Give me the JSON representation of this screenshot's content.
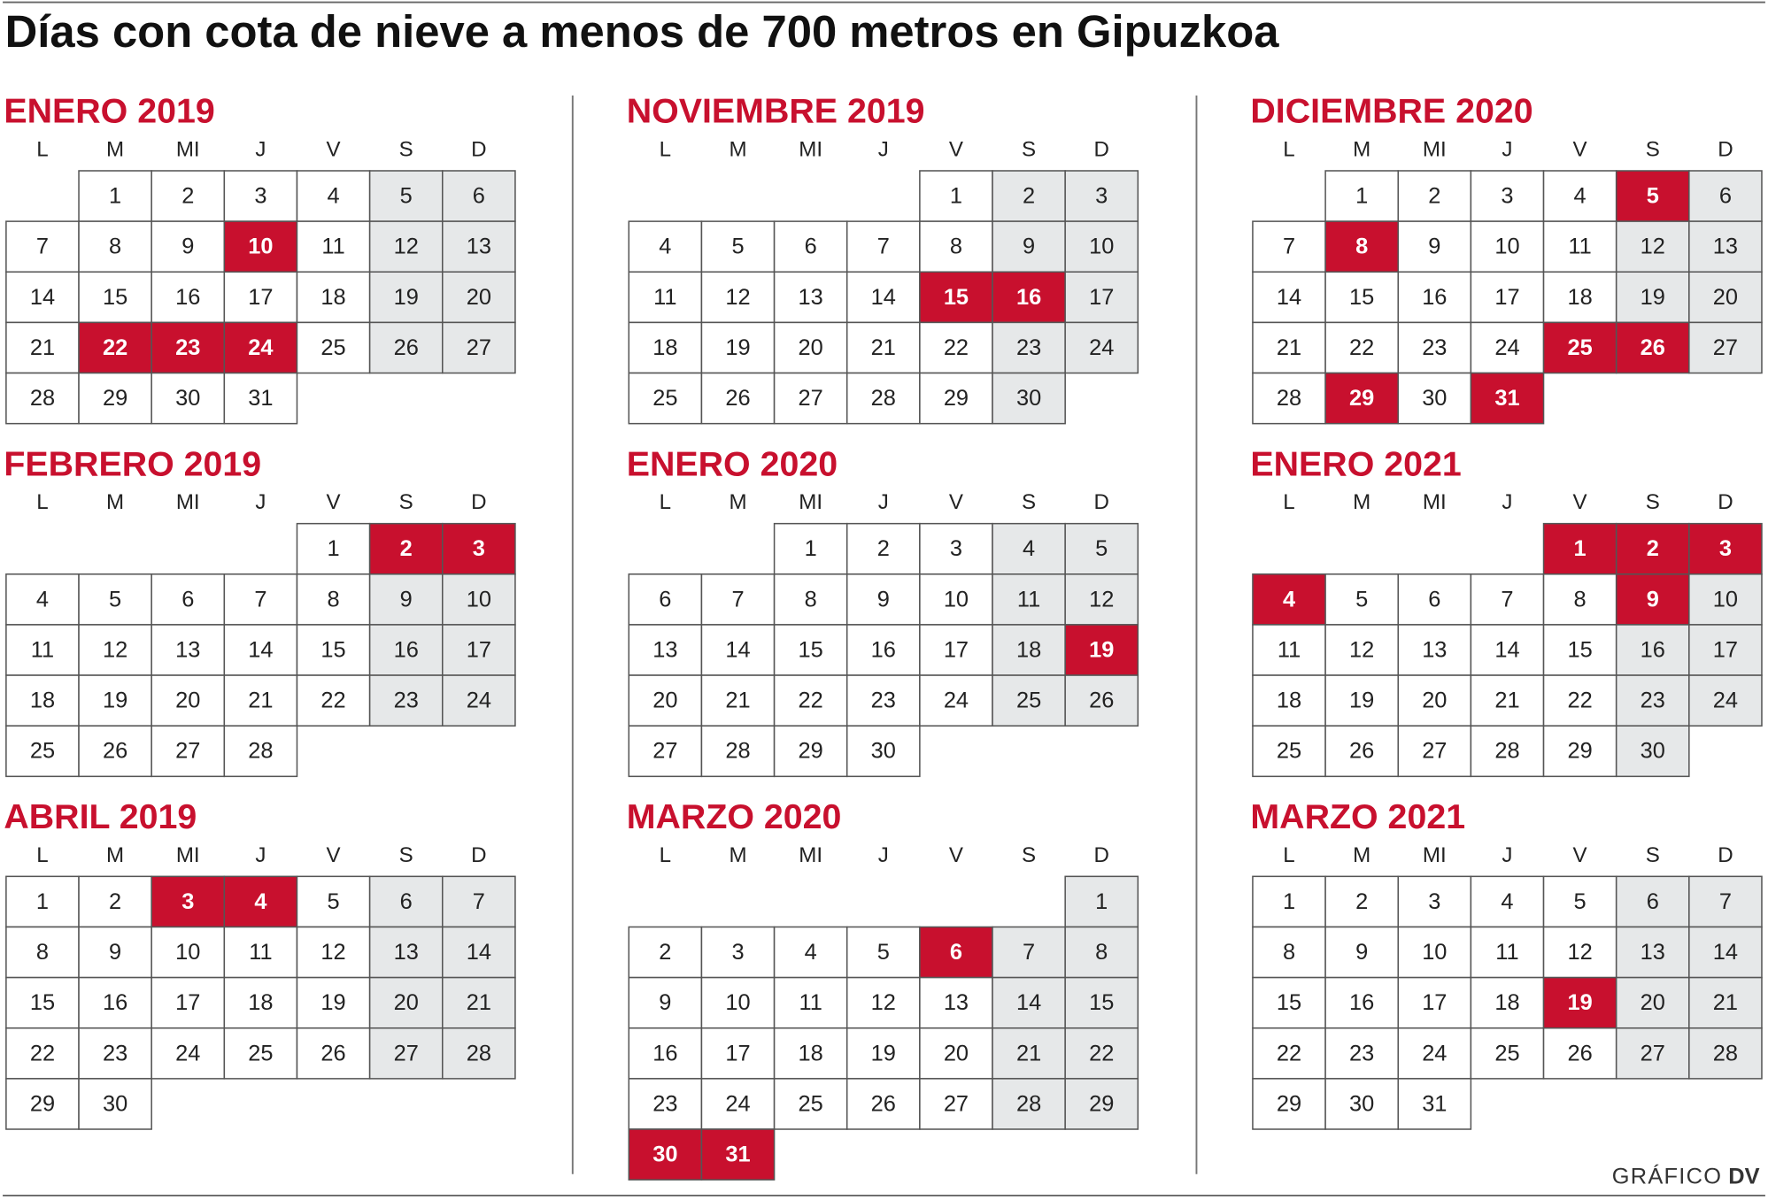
{
  "title": "Días con cota de nieve a menos de 700 metros en Gipuzkoa",
  "weekdays": [
    "L",
    "M",
    "MI",
    "J",
    "V",
    "S",
    "D"
  ],
  "months": [
    {
      "title": "ENERO 2019",
      "weeks": [
        [
          null,
          1,
          2,
          3,
          4,
          5,
          6
        ],
        [
          7,
          8,
          9,
          10,
          11,
          12,
          13
        ],
        [
          14,
          15,
          16,
          17,
          18,
          19,
          20
        ],
        [
          21,
          22,
          23,
          24,
          25,
          26,
          27
        ],
        [
          28,
          29,
          30,
          31
        ]
      ],
      "snow_days": [
        10,
        22,
        23,
        24
      ]
    },
    {
      "title": "FEBRERO 2019",
      "weeks": [
        [
          null,
          null,
          null,
          null,
          1,
          2,
          3
        ],
        [
          4,
          5,
          6,
          7,
          8,
          9,
          10
        ],
        [
          11,
          12,
          13,
          14,
          15,
          16,
          17
        ],
        [
          18,
          19,
          20,
          21,
          22,
          23,
          24
        ],
        [
          25,
          26,
          27,
          28
        ]
      ],
      "snow_days": [
        2,
        3
      ]
    },
    {
      "title": "ABRIL 2019",
      "weeks": [
        [
          1,
          2,
          3,
          4,
          5,
          6,
          7
        ],
        [
          8,
          9,
          10,
          11,
          12,
          13,
          14
        ],
        [
          15,
          16,
          17,
          18,
          19,
          20,
          21
        ],
        [
          22,
          23,
          24,
          25,
          26,
          27,
          28
        ],
        [
          29,
          30
        ]
      ],
      "snow_days": [
        3,
        4
      ]
    },
    {
      "title": "NOVIEMBRE 2019",
      "weeks": [
        [
          null,
          null,
          null,
          null,
          1,
          2,
          3
        ],
        [
          4,
          5,
          6,
          7,
          8,
          9,
          10
        ],
        [
          11,
          12,
          13,
          14,
          15,
          16,
          17
        ],
        [
          18,
          19,
          20,
          21,
          22,
          23,
          24
        ],
        [
          25,
          26,
          27,
          28,
          29,
          30
        ]
      ],
      "snow_days": [
        15,
        16
      ]
    },
    {
      "title": "ENERO 2020",
      "weeks": [
        [
          null,
          null,
          1,
          2,
          3,
          4,
          5
        ],
        [
          6,
          7,
          8,
          9,
          10,
          11,
          12
        ],
        [
          13,
          14,
          15,
          16,
          17,
          18,
          19
        ],
        [
          20,
          21,
          22,
          23,
          24,
          25,
          26
        ],
        [
          27,
          28,
          29,
          30
        ]
      ],
      "snow_days": [
        19
      ]
    },
    {
      "title": "MARZO 2020",
      "weeks": [
        [
          null,
          null,
          null,
          null,
          null,
          null,
          1
        ],
        [
          2,
          3,
          4,
          5,
          6,
          7,
          8
        ],
        [
          9,
          10,
          11,
          12,
          13,
          14,
          15
        ],
        [
          16,
          17,
          18,
          19,
          20,
          21,
          22
        ],
        [
          23,
          24,
          25,
          26,
          27,
          28,
          29
        ],
        [
          30,
          31
        ]
      ],
      "snow_days": [
        6,
        30,
        31
      ]
    },
    {
      "title": "DICIEMBRE 2020",
      "weeks": [
        [
          null,
          1,
          2,
          3,
          4,
          5,
          6
        ],
        [
          7,
          8,
          9,
          10,
          11,
          12,
          13
        ],
        [
          14,
          15,
          16,
          17,
          18,
          19,
          20
        ],
        [
          21,
          22,
          23,
          24,
          25,
          26,
          27
        ],
        [
          28,
          29,
          30,
          31
        ]
      ],
      "snow_days": [
        5,
        8,
        25,
        26,
        29,
        31
      ]
    },
    {
      "title": "ENERO 2021",
      "weeks": [
        [
          null,
          null,
          null,
          null,
          1,
          2,
          3
        ],
        [
          4,
          5,
          6,
          7,
          8,
          9,
          10
        ],
        [
          11,
          12,
          13,
          14,
          15,
          16,
          17
        ],
        [
          18,
          19,
          20,
          21,
          22,
          23,
          24
        ],
        [
          25,
          26,
          27,
          28,
          29,
          30
        ]
      ],
      "snow_days": [
        1,
        2,
        3,
        4,
        9
      ]
    },
    {
      "title": "MARZO 2021",
      "weeks": [
        [
          1,
          2,
          3,
          4,
          5,
          6,
          7
        ],
        [
          8,
          9,
          10,
          11,
          12,
          13,
          14
        ],
        [
          15,
          16,
          17,
          18,
          19,
          20,
          21
        ],
        [
          22,
          23,
          24,
          25,
          26,
          27,
          28
        ],
        [
          29,
          30,
          31
        ]
      ],
      "snow_days": [
        19
      ]
    }
  ],
  "footer": {
    "source": "GRÁFICO",
    "brand": "DV"
  }
}
